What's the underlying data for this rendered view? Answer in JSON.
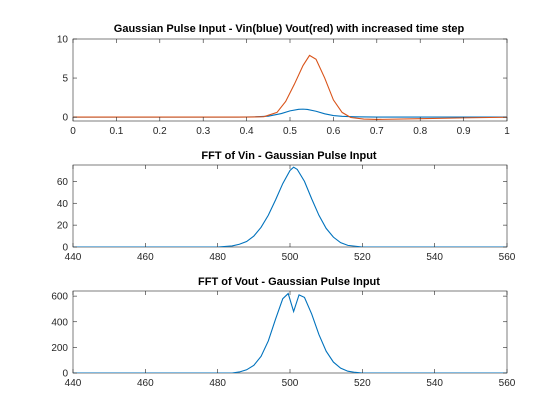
{
  "colors": {
    "blue": "#0072BD",
    "red": "#D95319",
    "axis": "#262626"
  },
  "chart_data": [
    {
      "type": "line",
      "title": "Gaussian Pulse Input - Vin(blue) Vout(red)  with increased time step",
      "xlim": [
        0,
        1
      ],
      "ylim": [
        -0.5,
        10
      ],
      "xticks": [
        0,
        0.1,
        0.2,
        0.3,
        0.4,
        0.5,
        0.6,
        0.7,
        0.8,
        0.9,
        1
      ],
      "xtick_labels": [
        "0",
        "0.1",
        "0.2",
        "0.3",
        "0.4",
        "0.5",
        "0.6",
        "0.7",
        "0.8",
        "0.9",
        "1"
      ],
      "yticks": [
        0,
        5,
        10
      ],
      "ytick_labels": [
        "0",
        "5",
        "10"
      ],
      "grid": false,
      "series": [
        {
          "color": "#0072BD",
          "x": [
            0,
            0.38,
            0.42,
            0.45,
            0.48,
            0.5,
            0.52,
            0.53,
            0.54,
            0.56,
            0.58,
            0.6,
            0.62,
            0.65,
            0.7,
            1.0
          ],
          "y": [
            0,
            0,
            0.03,
            0.12,
            0.45,
            0.8,
            1.0,
            1.02,
            0.98,
            0.75,
            0.42,
            0.2,
            0.1,
            0.04,
            0.0,
            0.0
          ]
        },
        {
          "color": "#D95319",
          "x": [
            0,
            0.4,
            0.44,
            0.47,
            0.49,
            0.51,
            0.53,
            0.545,
            0.56,
            0.58,
            0.6,
            0.62,
            0.64,
            0.67,
            0.7,
            0.8,
            0.9,
            1.0
          ],
          "y": [
            0,
            0,
            0.05,
            0.6,
            2.0,
            4.2,
            6.6,
            7.9,
            7.4,
            5.0,
            2.2,
            0.6,
            -0.05,
            -0.25,
            -0.3,
            -0.2,
            -0.1,
            -0.02
          ]
        }
      ]
    },
    {
      "type": "line",
      "title": "FFT of Vin - Gaussian Pulse Input",
      "xlim": [
        440,
        560
      ],
      "ylim": [
        0,
        75
      ],
      "xticks": [
        440,
        460,
        480,
        500,
        520,
        540,
        560
      ],
      "xtick_labels": [
        "440",
        "460",
        "480",
        "500",
        "520",
        "540",
        "560"
      ],
      "yticks": [
        0,
        20,
        40,
        60
      ],
      "ytick_labels": [
        "0",
        "20",
        "40",
        "60"
      ],
      "grid": false,
      "series": [
        {
          "color": "#0072BD",
          "x": [
            440,
            480,
            484,
            486,
            488,
            490,
            492,
            494,
            496,
            498,
            500,
            501,
            502,
            504,
            506,
            508,
            510,
            512,
            514,
            516,
            520,
            560
          ],
          "y": [
            0,
            0,
            1,
            2.5,
            5,
            10,
            18,
            29,
            43,
            58,
            70,
            73,
            71,
            60,
            44,
            29,
            17,
            9,
            4,
            1.5,
            0,
            0
          ]
        }
      ]
    },
    {
      "type": "line",
      "title": "FFT of Vout - Gaussian Pulse Input",
      "xlim": [
        440,
        560
      ],
      "ylim": [
        0,
        640
      ],
      "xticks": [
        440,
        460,
        480,
        500,
        520,
        540,
        560
      ],
      "xtick_labels": [
        "440",
        "460",
        "480",
        "500",
        "520",
        "540",
        "560"
      ],
      "yticks": [
        0,
        200,
        400,
        600
      ],
      "ytick_labels": [
        "0",
        "200",
        "400",
        "600"
      ],
      "grid": false,
      "series": [
        {
          "color": "#0072BD",
          "x": [
            440,
            484,
            486,
            488,
            490,
            492,
            494,
            496,
            498,
            499.5,
            501,
            502.5,
            504,
            506,
            508,
            510,
            512,
            514,
            516,
            518,
            520,
            560
          ],
          "y": [
            0,
            0,
            8,
            25,
            60,
            130,
            250,
            420,
            580,
            620,
            480,
            610,
            590,
            460,
            300,
            170,
            85,
            38,
            14,
            5,
            0,
            0
          ]
        }
      ]
    }
  ]
}
